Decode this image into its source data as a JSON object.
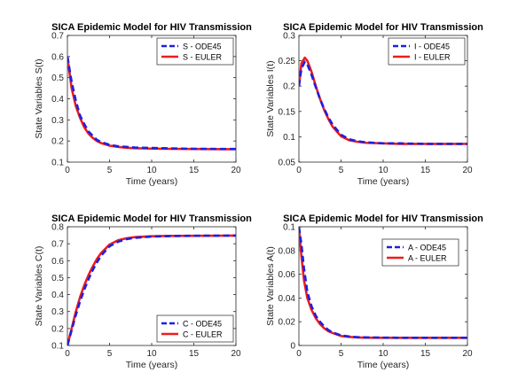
{
  "chart_data": [
    {
      "type": "line",
      "title": "SICA Epidemic Model for HIV Transmission",
      "xlabel": "Time (years)",
      "ylabel": "State Variables S(t)",
      "xlim": [
        0,
        20
      ],
      "ylim": [
        0.1,
        0.7
      ],
      "xticks": [
        0,
        5,
        10,
        15,
        20
      ],
      "yticks": [
        0.1,
        0.2,
        0.3,
        0.4,
        0.5,
        0.6,
        0.7
      ],
      "legend_position": "top-right",
      "grid": false,
      "x": [
        0,
        0.5,
        1,
        1.5,
        2,
        2.5,
        3,
        3.5,
        4,
        5,
        6,
        7,
        8,
        10,
        12,
        15,
        20
      ],
      "series": [
        {
          "name": "S - ODE45",
          "color": "#1f1fe0",
          "dash": "dashed",
          "values": [
            0.6,
            0.48,
            0.39,
            0.32,
            0.28,
            0.245,
            0.225,
            0.205,
            0.195,
            0.182,
            0.175,
            0.172,
            0.169,
            0.167,
            0.165,
            0.163,
            0.162
          ]
        },
        {
          "name": "S - EULER",
          "color": "#ee1c1c",
          "dash": "solid",
          "values": [
            0.6,
            0.45,
            0.365,
            0.31,
            0.265,
            0.235,
            0.215,
            0.2,
            0.19,
            0.178,
            0.172,
            0.168,
            0.166,
            0.164,
            0.163,
            0.162,
            0.161
          ]
        }
      ]
    },
    {
      "type": "line",
      "title": "SICA Epidemic Model for HIV Transmission",
      "xlabel": "Time (years)",
      "ylabel": "State Variables I(t)",
      "xlim": [
        0,
        20
      ],
      "ylim": [
        0.05,
        0.3
      ],
      "xticks": [
        0,
        5,
        10,
        15,
        20
      ],
      "yticks": [
        0.05,
        0.1,
        0.15,
        0.2,
        0.25,
        0.3
      ],
      "legend_position": "top-right",
      "grid": false,
      "x": [
        0,
        0.3,
        0.7,
        1,
        1.5,
        2,
        2.5,
        3,
        3.5,
        4,
        5,
        6,
        7,
        8,
        10,
        12,
        15,
        20
      ],
      "series": [
        {
          "name": "I - ODE45",
          "color": "#1f1fe0",
          "dash": "dashed",
          "values": [
            0.2,
            0.235,
            0.248,
            0.243,
            0.222,
            0.198,
            0.175,
            0.155,
            0.138,
            0.124,
            0.104,
            0.095,
            0.091,
            0.089,
            0.087,
            0.087,
            0.086,
            0.086
          ]
        },
        {
          "name": "I - EULER",
          "color": "#ee1c1c",
          "dash": "solid",
          "values": [
            0.2,
            0.245,
            0.256,
            0.25,
            0.228,
            0.2,
            0.175,
            0.153,
            0.135,
            0.12,
            0.101,
            0.093,
            0.09,
            0.088,
            0.087,
            0.086,
            0.086,
            0.086
          ]
        }
      ]
    },
    {
      "type": "line",
      "title": "SICA Epidemic Model for HIV Transmission",
      "xlabel": "Time (years)",
      "ylabel": "State Variables C(t)",
      "xlim": [
        0,
        20
      ],
      "ylim": [
        0.1,
        0.8
      ],
      "xticks": [
        0,
        5,
        10,
        15,
        20
      ],
      "yticks": [
        0.1,
        0.2,
        0.3,
        0.4,
        0.5,
        0.6,
        0.7,
        0.8
      ],
      "legend_position": "bottom-right",
      "grid": false,
      "x": [
        0,
        0.5,
        1,
        1.5,
        2,
        2.5,
        3,
        3.5,
        4,
        5,
        6,
        7,
        8,
        10,
        12,
        15,
        20
      ],
      "series": [
        {
          "name": "C - ODE45",
          "color": "#1f1fe0",
          "dash": "dashed",
          "values": [
            0.1,
            0.19,
            0.28,
            0.36,
            0.43,
            0.49,
            0.545,
            0.59,
            0.63,
            0.685,
            0.712,
            0.727,
            0.735,
            0.742,
            0.745,
            0.747,
            0.748
          ]
        },
        {
          "name": "C - EULER",
          "color": "#ee1c1c",
          "dash": "solid",
          "values": [
            0.1,
            0.2,
            0.3,
            0.385,
            0.455,
            0.515,
            0.565,
            0.61,
            0.645,
            0.695,
            0.72,
            0.732,
            0.739,
            0.744,
            0.746,
            0.747,
            0.748
          ]
        }
      ]
    },
    {
      "type": "line",
      "title": "SICA Epidemic Model for HIV Transmission",
      "xlabel": "Time (years)",
      "ylabel": "State Variables A(t)",
      "xlim": [
        0,
        20
      ],
      "ylim": [
        0,
        0.1
      ],
      "xticks": [
        0,
        5,
        10,
        15,
        20
      ],
      "yticks": [
        0,
        0.02,
        0.04,
        0.06,
        0.08,
        0.1
      ],
      "legend_position": "top-right",
      "grid": false,
      "x": [
        0,
        0.3,
        0.6,
        1,
        1.5,
        2,
        2.5,
        3,
        3.5,
        4,
        5,
        6,
        7,
        8,
        10,
        12,
        15,
        20
      ],
      "series": [
        {
          "name": "A - ODE45",
          "color": "#1f1fe0",
          "dash": "dashed",
          "values": [
            0.1,
            0.085,
            0.065,
            0.045,
            0.033,
            0.025,
            0.02,
            0.016,
            0.013,
            0.011,
            0.0085,
            0.0075,
            0.007,
            0.0068,
            0.0066,
            0.0065,
            0.0065,
            0.0065
          ]
        },
        {
          "name": "A - EULER",
          "color": "#ee1c1c",
          "dash": "solid",
          "values": [
            0.1,
            0.075,
            0.055,
            0.04,
            0.03,
            0.023,
            0.018,
            0.0145,
            0.012,
            0.0105,
            0.008,
            0.0072,
            0.0068,
            0.0066,
            0.0065,
            0.0065,
            0.0065,
            0.0065
          ]
        }
      ]
    }
  ]
}
